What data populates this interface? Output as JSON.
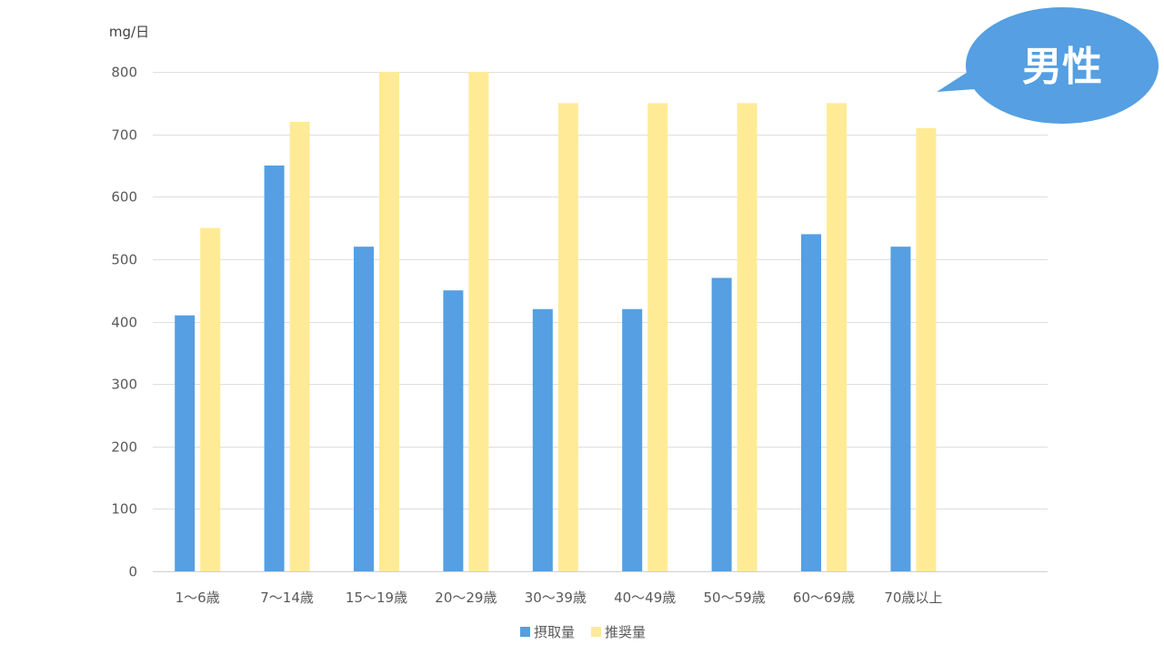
{
  "chart_data": {
    "type": "bar",
    "unit_label": "mg/日",
    "categories": [
      "1〜6歳",
      "7〜14歳",
      "15〜19歳",
      "20〜29歳",
      "30〜39歳",
      "40〜49歳",
      "50〜59歳",
      "60〜69歳",
      "70歳以上"
    ],
    "series": [
      {
        "name": "摂取量",
        "color": "#559fe2",
        "values": [
          410,
          650,
          520,
          450,
          420,
          420,
          470,
          540,
          520
        ]
      },
      {
        "name": "推奨量",
        "color": "#ffeb96",
        "values": [
          550,
          720,
          800,
          800,
          750,
          750,
          750,
          750,
          710
        ]
      }
    ],
    "ylim": [
      0,
      800
    ],
    "yticks": [
      0,
      100,
      200,
      300,
      400,
      500,
      600,
      700,
      800
    ],
    "grid": true,
    "legend_position": "bottom",
    "callout": {
      "text": "男性",
      "color": "#559fe2"
    }
  }
}
